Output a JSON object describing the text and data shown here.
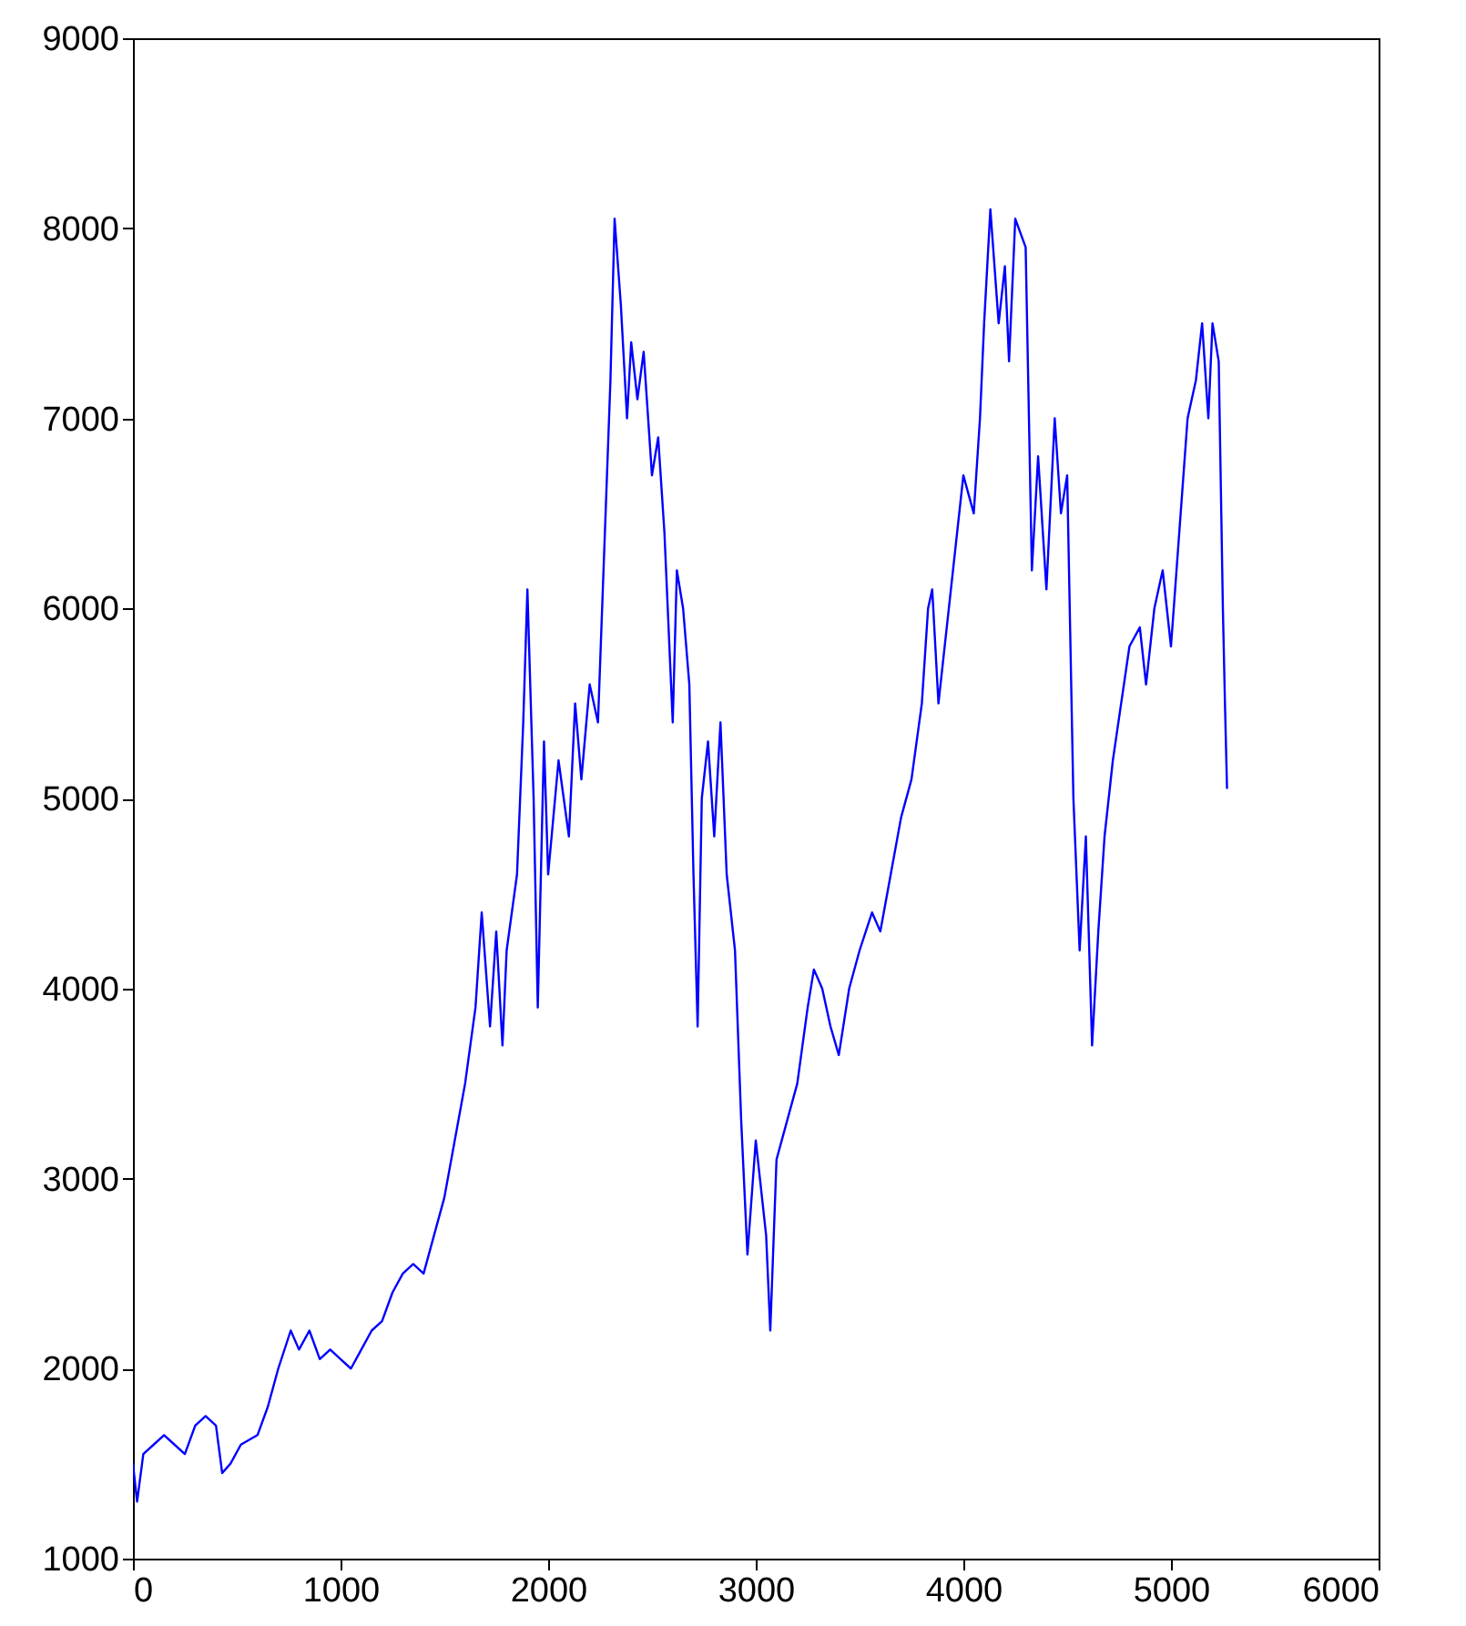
{
  "chart_data": {
    "type": "line",
    "xlim": [
      0,
      6000
    ],
    "xticks": [
      0,
      1000,
      2000,
      3000,
      4000,
      5000,
      6000
    ],
    "ylim": [
      1000,
      9000
    ],
    "yticks": [
      1000,
      2000,
      3000,
      4000,
      5000,
      6000,
      7000,
      8000,
      9000
    ],
    "grid": false,
    "marker": "none",
    "line_style": "solid",
    "x": [
      0,
      20,
      50,
      100,
      150,
      200,
      250,
      300,
      350,
      400,
      430,
      470,
      520,
      600,
      650,
      700,
      760,
      800,
      850,
      900,
      950,
      1000,
      1050,
      1100,
      1150,
      1200,
      1250,
      1300,
      1350,
      1400,
      1450,
      1500,
      1550,
      1600,
      1650,
      1680,
      1720,
      1750,
      1780,
      1800,
      1850,
      1880,
      1900,
      1930,
      1950,
      1980,
      2000,
      2050,
      2100,
      2130,
      2160,
      2200,
      2240,
      2280,
      2300,
      2320,
      2350,
      2380,
      2400,
      2430,
      2460,
      2500,
      2530,
      2560,
      2600,
      2620,
      2650,
      2680,
      2700,
      2720,
      2740,
      2770,
      2800,
      2830,
      2860,
      2900,
      2930,
      2960,
      3000,
      3050,
      3070,
      3100,
      3150,
      3200,
      3250,
      3280,
      3320,
      3360,
      3400,
      3450,
      3500,
      3560,
      3600,
      3650,
      3700,
      3750,
      3800,
      3830,
      3850,
      3880,
      3920,
      3960,
      4000,
      4050,
      4080,
      4100,
      4130,
      4170,
      4200,
      4220,
      4250,
      4300,
      4330,
      4360,
      4400,
      4440,
      4470,
      4500,
      4530,
      4560,
      4590,
      4620,
      4650,
      4680,
      4720,
      4760,
      4800,
      4850,
      4880,
      4920,
      4960,
      5000,
      5040,
      5080,
      5120,
      5150,
      5180,
      5200,
      5230,
      5250,
      5260,
      5270
    ],
    "series": [
      {
        "color": "#0000ff",
        "values": [
          1500,
          1300,
          1550,
          1600,
          1650,
          1600,
          1550,
          1700,
          1750,
          1700,
          1450,
          1500,
          1600,
          1650,
          1800,
          2000,
          2200,
          2100,
          2200,
          2050,
          2100,
          2050,
          2000,
          2100,
          2200,
          2250,
          2400,
          2500,
          2550,
          2500,
          2700,
          2900,
          3200,
          3500,
          3900,
          4400,
          3800,
          4300,
          3700,
          4200,
          4600,
          5400,
          6100,
          5000,
          3900,
          5300,
          4600,
          5200,
          4800,
          5500,
          5100,
          5600,
          5400,
          6600,
          7200,
          8050,
          7600,
          7000,
          7400,
          7100,
          7350,
          6700,
          6900,
          6400,
          5400,
          6200,
          6000,
          5600,
          4600,
          3800,
          5000,
          5300,
          4800,
          5400,
          4600,
          4200,
          3300,
          2600,
          3200,
          2700,
          2200,
          3100,
          3300,
          3500,
          3900,
          4100,
          4000,
          3800,
          3650,
          4000,
          4200,
          4400,
          4300,
          4600,
          4900,
          5100,
          5500,
          6000,
          6100,
          5500,
          5900,
          6300,
          6700,
          6500,
          7000,
          7500,
          8100,
          7500,
          7800,
          7300,
          8050,
          7900,
          6200,
          6800,
          6100,
          7000,
          6500,
          6700,
          5000,
          4200,
          4800,
          3700,
          4300,
          4800,
          5200,
          5500,
          5800,
          5900,
          5600,
          6000,
          6200,
          5800,
          6400,
          7000,
          7200,
          7500,
          7000,
          7500,
          7300,
          6000,
          5500,
          5050
        ]
      }
    ]
  }
}
